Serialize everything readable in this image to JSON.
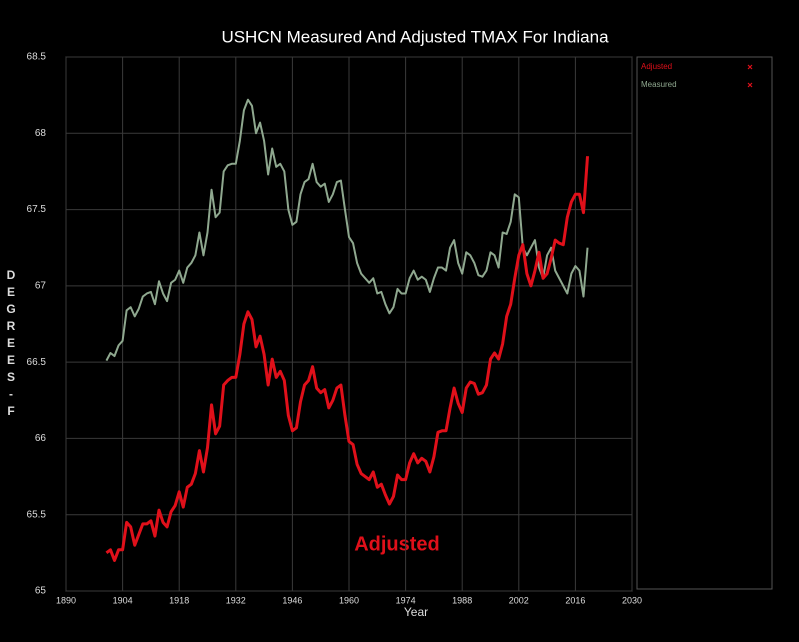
{
  "chart_data": {
    "type": "line",
    "title": "USHCN Measured And Adjusted TMAX For Indiana",
    "x_label": "Year",
    "y_label": "DEGREES-F",
    "annotation": "Adjusted",
    "x": [
      1900,
      1901,
      1902,
      1903,
      1904,
      1905,
      1906,
      1907,
      1908,
      1909,
      1910,
      1911,
      1912,
      1913,
      1914,
      1915,
      1916,
      1917,
      1918,
      1919,
      1920,
      1921,
      1922,
      1923,
      1924,
      1925,
      1926,
      1927,
      1928,
      1929,
      1930,
      1931,
      1932,
      1933,
      1934,
      1935,
      1936,
      1937,
      1938,
      1939,
      1940,
      1941,
      1942,
      1943,
      1944,
      1945,
      1946,
      1947,
      1948,
      1949,
      1950,
      1951,
      1952,
      1953,
      1954,
      1955,
      1956,
      1957,
      1958,
      1959,
      1960,
      1961,
      1962,
      1963,
      1964,
      1965,
      1966,
      1967,
      1968,
      1969,
      1970,
      1971,
      1972,
      1973,
      1974,
      1975,
      1976,
      1977,
      1978,
      1979,
      1980,
      1981,
      1982,
      1983,
      1984,
      1985,
      1986,
      1987,
      1988,
      1989,
      1990,
      1991,
      1992,
      1993,
      1994,
      1995,
      1996,
      1997,
      1998,
      1999,
      2000,
      2001,
      2002,
      2003,
      2004,
      2005,
      2006,
      2007,
      2008,
      2009,
      2010,
      2011,
      2012,
      2013,
      2014,
      2015,
      2016,
      2017,
      2018,
      2019
    ],
    "series": [
      {
        "name": "Adjusted",
        "color": "#e0101a",
        "width": 3,
        "values": [
          65.25,
          65.27,
          65.2,
          65.27,
          65.27,
          65.45,
          65.42,
          65.3,
          65.37,
          65.44,
          65.44,
          65.46,
          65.36,
          65.53,
          65.45,
          65.42,
          65.52,
          65.56,
          65.65,
          65.55,
          65.68,
          65.7,
          65.77,
          65.92,
          65.78,
          65.94,
          66.22,
          66.03,
          66.08,
          66.35,
          66.38,
          66.4,
          66.4,
          66.55,
          66.75,
          66.83,
          66.78,
          66.6,
          66.67,
          66.55,
          66.35,
          66.52,
          66.4,
          66.44,
          66.38,
          66.15,
          66.05,
          66.07,
          66.24,
          66.35,
          66.38,
          66.47,
          66.33,
          66.3,
          66.32,
          66.2,
          66.25,
          66.33,
          66.35,
          66.15,
          65.98,
          65.96,
          65.83,
          65.77,
          65.75,
          65.73,
          65.78,
          65.68,
          65.7,
          65.63,
          65.57,
          65.62,
          65.76,
          65.73,
          65.73,
          65.84,
          65.9,
          65.84,
          65.87,
          65.85,
          65.78,
          65.88,
          66.04,
          66.05,
          66.05,
          66.2,
          66.33,
          66.23,
          66.17,
          66.33,
          66.37,
          66.36,
          66.29,
          66.3,
          66.35,
          66.52,
          66.56,
          66.52,
          66.62,
          66.8,
          66.88,
          67.05,
          67.2,
          67.27,
          67.08,
          67.0,
          67.1,
          67.22,
          67.05,
          67.08,
          67.18,
          67.3,
          67.28,
          67.27,
          67.45,
          67.55,
          67.6,
          67.6,
          67.48,
          67.85
        ]
      },
      {
        "name": "Measured",
        "color": "#8fa88f",
        "width": 2,
        "values": [
          66.51,
          66.56,
          66.54,
          66.61,
          66.64,
          66.84,
          66.86,
          66.8,
          66.85,
          66.93,
          66.95,
          66.96,
          66.88,
          67.03,
          66.95,
          66.9,
          67.02,
          67.04,
          67.1,
          67.02,
          67.12,
          67.15,
          67.2,
          67.35,
          67.2,
          67.35,
          67.63,
          67.45,
          67.48,
          67.75,
          67.79,
          67.8,
          67.8,
          67.95,
          68.15,
          68.22,
          68.18,
          68.0,
          68.07,
          67.95,
          67.73,
          67.9,
          67.78,
          67.8,
          67.75,
          67.5,
          67.4,
          67.42,
          67.6,
          67.68,
          67.7,
          67.8,
          67.68,
          67.65,
          67.67,
          67.55,
          67.6,
          67.68,
          67.69,
          67.5,
          67.32,
          67.28,
          67.15,
          67.08,
          67.05,
          67.02,
          67.05,
          66.95,
          66.96,
          66.88,
          66.82,
          66.86,
          66.98,
          66.95,
          66.95,
          67.05,
          67.1,
          67.04,
          67.06,
          67.04,
          66.96,
          67.05,
          67.12,
          67.12,
          67.1,
          67.25,
          67.3,
          67.15,
          67.08,
          67.22,
          67.2,
          67.15,
          67.07,
          67.06,
          67.1,
          67.22,
          67.2,
          67.12,
          67.35,
          67.34,
          67.42,
          67.6,
          67.58,
          67.25,
          67.2,
          67.25,
          67.3,
          67.12,
          67.05,
          67.2,
          67.25,
          67.1,
          67.05,
          67.0,
          66.95,
          67.08,
          67.13,
          67.1,
          66.93,
          67.25
        ]
      }
    ],
    "xlim": [
      1890,
      2030
    ],
    "xticks": [
      1890,
      1904,
      1918,
      1932,
      1946,
      1960,
      1974,
      1988,
      2002,
      2016,
      2030
    ],
    "ylim": [
      65,
      68.5
    ],
    "yticks": [
      65,
      65.5,
      66,
      66.5,
      67,
      67.5,
      68,
      68.5
    ],
    "grid": true,
    "legend": "right"
  }
}
